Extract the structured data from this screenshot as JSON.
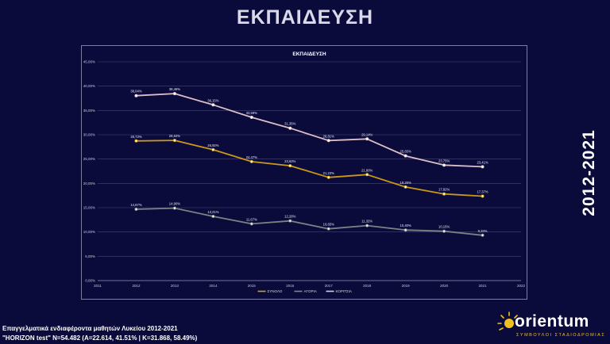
{
  "page": {
    "title": "ΕΚΠΑΙΔΕΥΣΗ",
    "side_label": "2012-2021",
    "footnote_1": "Επαγγελματικά ενδιαφέροντα μαθητών Λυκείου 2012-2021",
    "footnote_2": "\"HORIZON test\" N=54.482 (A=22.614, 41.51% | K=31.868, 58.49%)",
    "logo_text": "orientum",
    "logo_tagline": "ΣΥΜΒΟΥΛΟΙ ΣΤΑΔΙΟΔΡΟΜΙΑΣ"
  },
  "chart_data": {
    "type": "line",
    "title": "ΕΚΠΑΙΔΕΥΣΗ",
    "x": [
      2012,
      2013,
      2014,
      2015,
      2016,
      2017,
      2018,
      2019,
      2020,
      2021
    ],
    "xlim": [
      2011,
      2022
    ],
    "x_ticks": [
      "2011",
      "2012",
      "2013",
      "2014",
      "2015",
      "2016",
      "2017",
      "2018",
      "2019",
      "2020",
      "2021",
      "2022"
    ],
    "ylim": [
      0,
      45
    ],
    "y_ticks": [
      "0,00%",
      "5,00%",
      "10,00%",
      "15,00%",
      "20,00%",
      "25,00%",
      "30,00%",
      "35,00%",
      "40,00%",
      "45,00%"
    ],
    "grid": true,
    "legend_position": "bottom",
    "series": [
      {
        "name": "ΣΥΝΟΛΟ",
        "color": "#d4a017",
        "values": [
          28.73,
          28.84,
          26.92,
          24.47,
          23.63,
          21.23,
          21.8,
          19.26,
          17.82,
          17.37
        ],
        "labels": [
          "28,73%",
          "28,84%",
          "26,92%",
          "24,47%",
          "23,63%",
          "21,23%",
          "21,80%",
          "19,26%",
          "17,82%",
          "17,37%"
        ]
      },
      {
        "name": "ΑΓΟΡΙΑ",
        "color": "#7f8a86",
        "values": [
          14.67,
          14.9,
          13.21,
          11.67,
          12.28,
          10.65,
          11.32,
          10.4,
          10.15,
          9.33
        ],
        "labels": [
          "14,67%",
          "14,90%",
          "13,21%",
          "11,67%",
          "12,28%",
          "10,65%",
          "11,32%",
          "10,40%",
          "10,15%",
          "9,33%"
        ]
      },
      {
        "name": "ΚΟΡΙΤΣΙΑ",
        "color": "#e6c9cf",
        "values": [
          38.04,
          38.46,
          36.15,
          33.59,
          31.35,
          28.81,
          29.14,
          25.65,
          23.75,
          23.41
        ],
        "labels": [
          "38,04%",
          "38,46%",
          "36,15%",
          "33,59%",
          "31,35%",
          "28,81%",
          "29,14%",
          "25,65%",
          "23,75%",
          "23,41%"
        ]
      }
    ]
  }
}
